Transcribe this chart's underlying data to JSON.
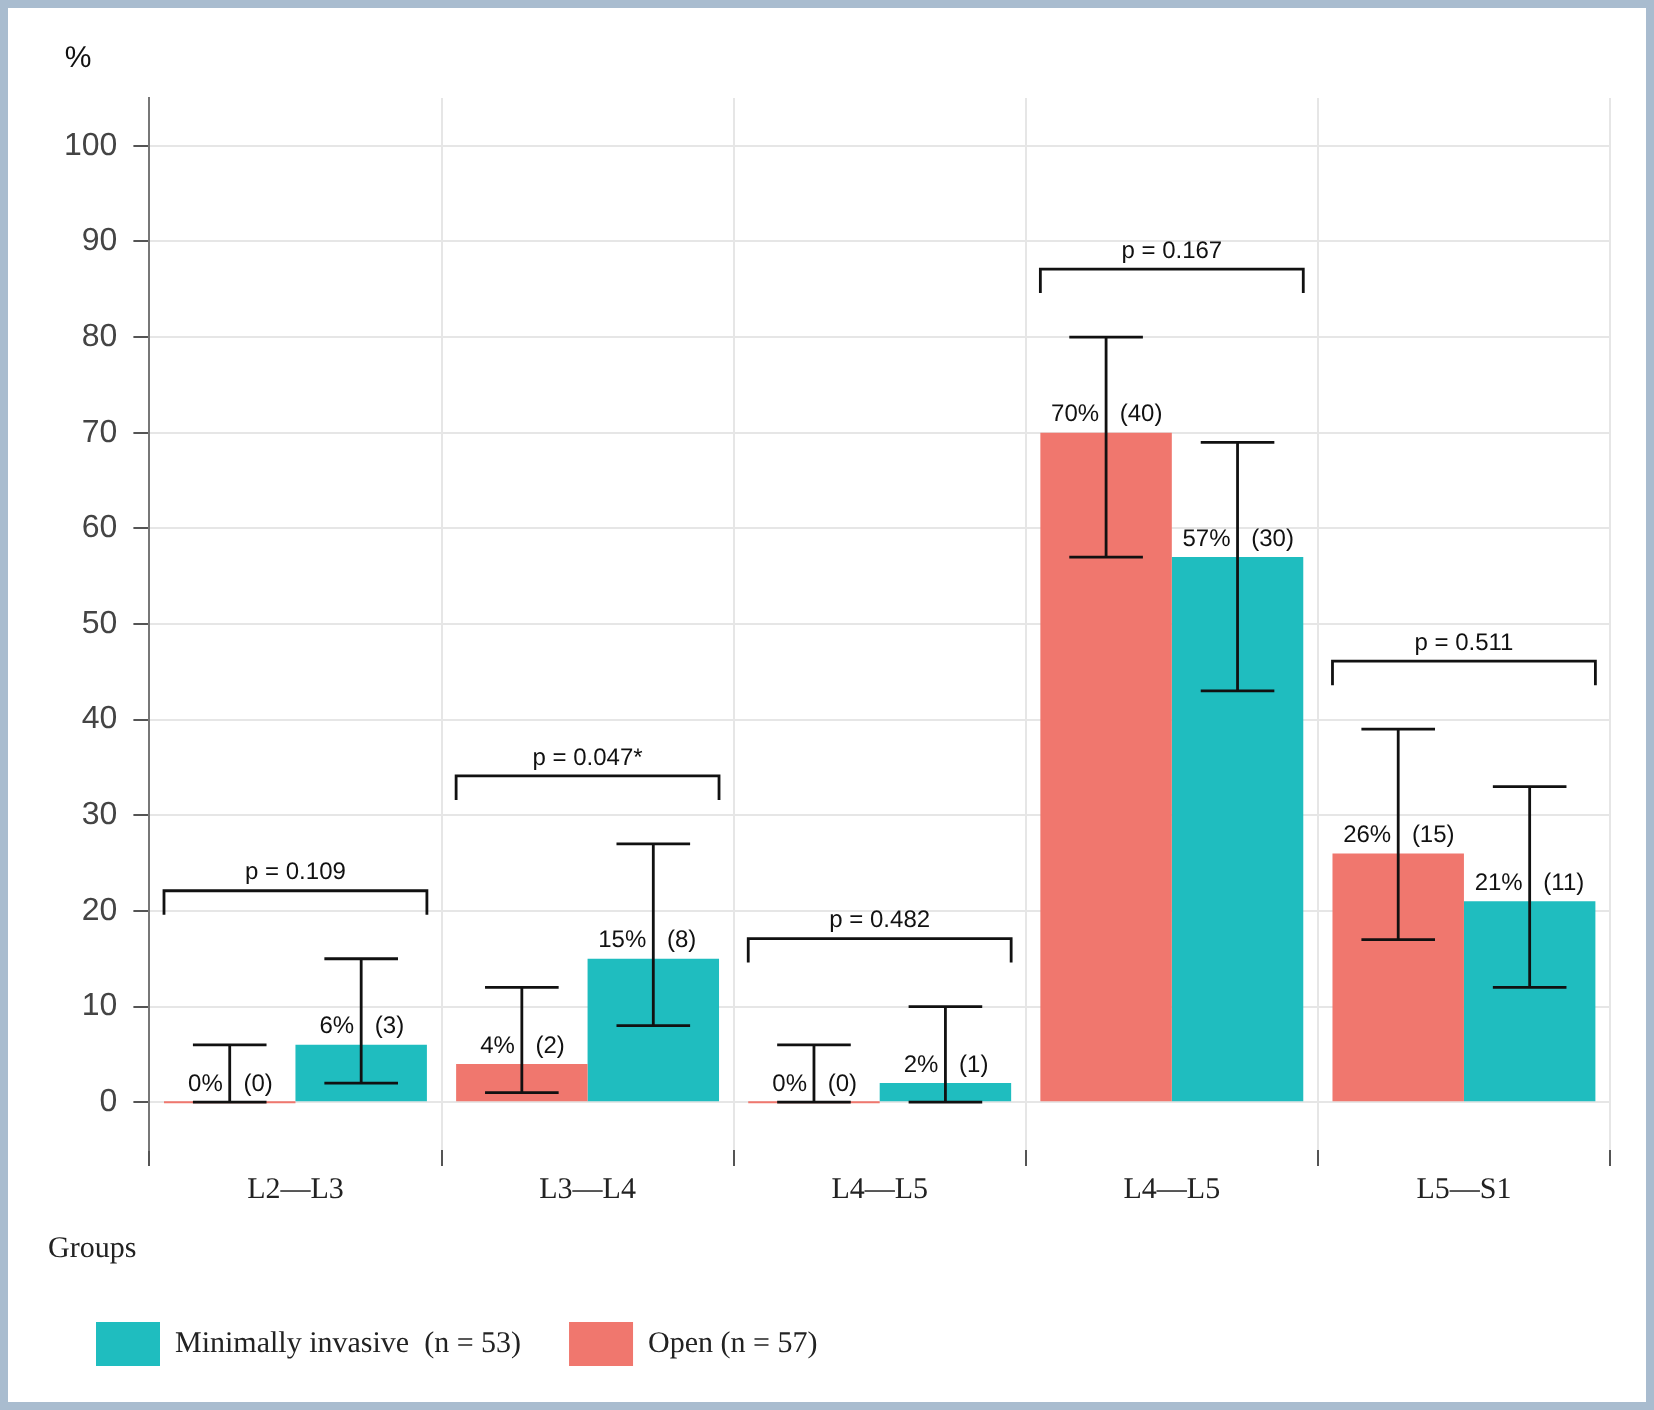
{
  "chart_data": {
    "type": "bar",
    "ylabel": "%",
    "legend_title": "Groups",
    "legend": "bottom",
    "grid": true,
    "categories": [
      "L2—L3",
      "L3—L4",
      "L4—L5",
      "L4—L5",
      "L5—S1"
    ],
    "series": [
      {
        "name": "Open (n = 57)",
        "color": "#f0776e",
        "values": [
          0,
          4,
          0,
          70,
          26
        ],
        "errors": [
          [
            0,
            6
          ],
          [
            1,
            12
          ],
          [
            0,
            6
          ],
          [
            57,
            80
          ],
          [
            17,
            39
          ]
        ],
        "value_labels": [
          "0% (0)",
          "4% (2)",
          "0% (0)",
          "70% (40)",
          "26% (15)"
        ]
      },
      {
        "name": "Minimally invasive  (n = 53)",
        "color": "#1fbdbf",
        "values": [
          6,
          15,
          2,
          57,
          21
        ],
        "errors": [
          [
            2,
            15
          ],
          [
            8,
            27
          ],
          [
            0,
            10
          ],
          [
            43,
            69
          ],
          [
            12,
            33
          ]
        ],
        "value_labels": [
          "6% (3)",
          "15% (8)",
          "2% (1)",
          "57% (30)",
          "21% (11)"
        ]
      }
    ],
    "ylim": [
      -5,
      105
    ],
    "yticks": [
      0,
      10,
      20,
      30,
      40,
      50,
      60,
      70,
      80,
      90,
      100
    ],
    "annotations": [
      "p = 0.109",
      "p = 0.047*",
      "p = 0.482",
      "p = 0.167",
      "p = 0.511"
    ]
  }
}
